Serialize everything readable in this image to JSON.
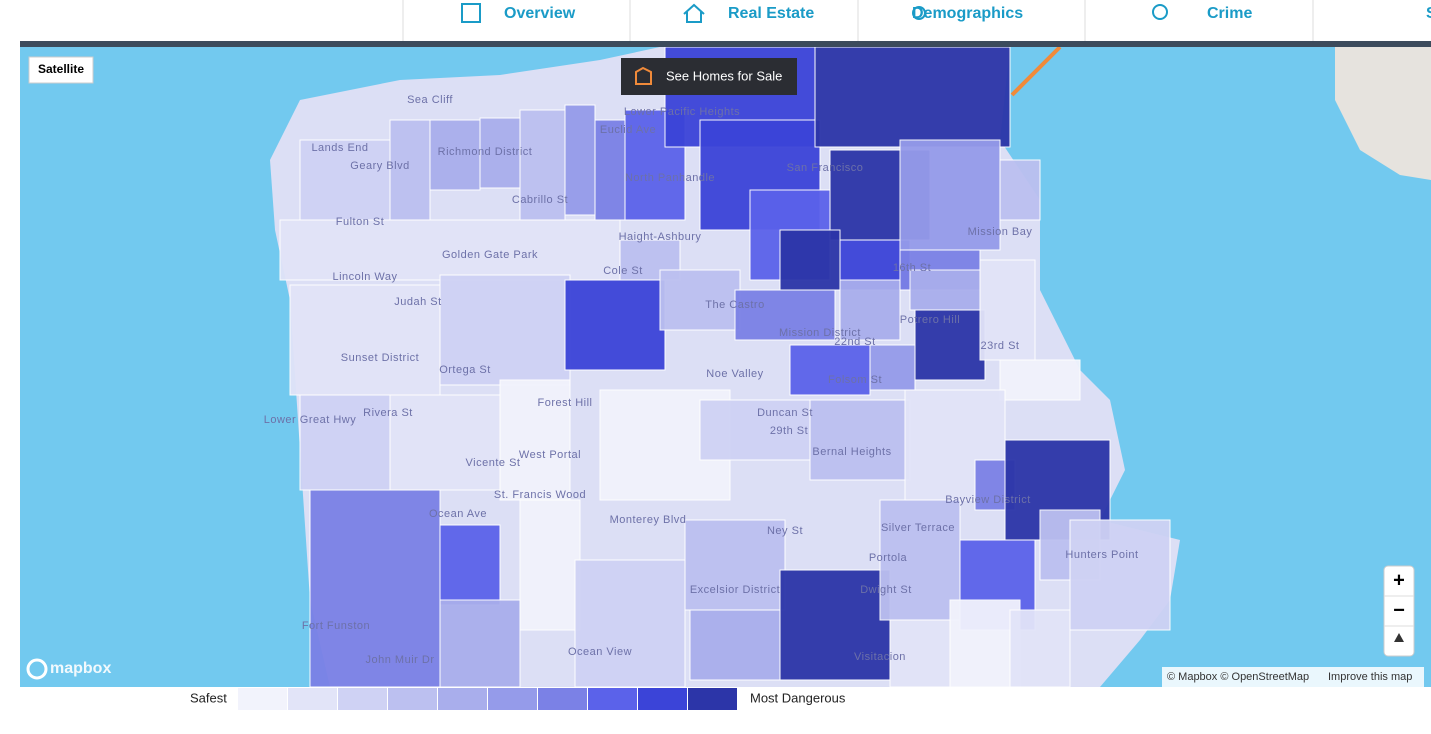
{
  "nav": {
    "tabs": [
      "Overview",
      "Real Estate",
      "Demographics",
      "Crime",
      "S"
    ]
  },
  "map": {
    "satellite_button": "Satellite",
    "homes_button": "See Homes for Sale",
    "zoom_in": "+",
    "zoom_out": "−",
    "logo": "mapbox",
    "attribution": "© Mapbox © OpenStreetMap",
    "improve": "Improve this map",
    "labels": [
      "San Francisco",
      "Sea Cliff",
      "Lands End",
      "Richmond District",
      "Geary Blvd",
      "Fulton St",
      "Golden Gate Park",
      "Lincoln Way",
      "Judah St",
      "Sunset District",
      "Ortega St",
      "Rivera St",
      "Vicente St",
      "Forest Hill",
      "West Portal",
      "St. Francis Wood",
      "Ocean Ave",
      "Monterey Blvd",
      "Ocean View",
      "Excelsior District",
      "Portola",
      "Silver Terrace",
      "Bayview District",
      "Hunters Point",
      "Mission Bay",
      "Potrero Hill",
      "16th St",
      "22nd St",
      "23rd St",
      "Noe Valley",
      "The Castro",
      "Mission District",
      "Duncan St",
      "29th St",
      "Bernal Heights",
      "Haight-Ashbury",
      "North Panhandle",
      "Lower Pacific Heights",
      "Euclid Ave",
      "Cabrillo St",
      "Cole St",
      "Ney St",
      "Dwight St",
      "Fort Funston",
      "John Muir Dr",
      "Lower Great Hwy",
      "Visitacion",
      "Folsom St"
    ]
  },
  "legend": {
    "low": "Safest",
    "high": "Most Dangerous",
    "colors": [
      "#f2f3fc",
      "#e2e4f8",
      "#cfd2f4",
      "#bcc0f0",
      "#a9aeec",
      "#959bea",
      "#7b81e6",
      "#5b62ea",
      "#3b44d8",
      "#2c35a8"
    ]
  }
}
